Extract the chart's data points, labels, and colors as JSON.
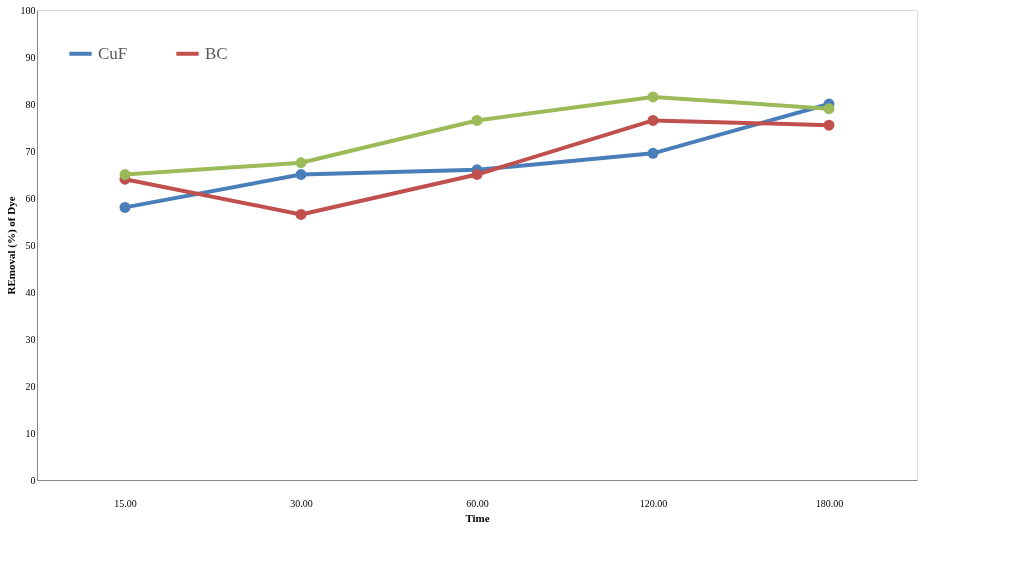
{
  "chart_data": {
    "type": "line",
    "xlabel": "Time",
    "ylabel": "REmoval (%) of Dye",
    "categories": [
      "15.00",
      "30.00",
      "60.00",
      "120.00",
      "180.00"
    ],
    "series": [
      {
        "name": "CuF",
        "color": "#4a7ebb",
        "values": [
          58,
          65,
          66,
          69.5,
          80
        ]
      },
      {
        "name": "BC",
        "color": "#c0504d",
        "values": [
          64,
          56.5,
          65,
          76.5,
          75.5
        ]
      },
      {
        "color": "#9bbb59",
        "values": [
          65,
          67.5,
          76.5,
          81.5,
          79
        ]
      }
    ],
    "ylim": [
      0,
      100
    ],
    "yticks": [
      0,
      10,
      20,
      30,
      40,
      50,
      60,
      70,
      80,
      90,
      100
    ],
    "grid": false,
    "legend": "top left",
    "marker": "circle",
    "line_style": "solid"
  }
}
